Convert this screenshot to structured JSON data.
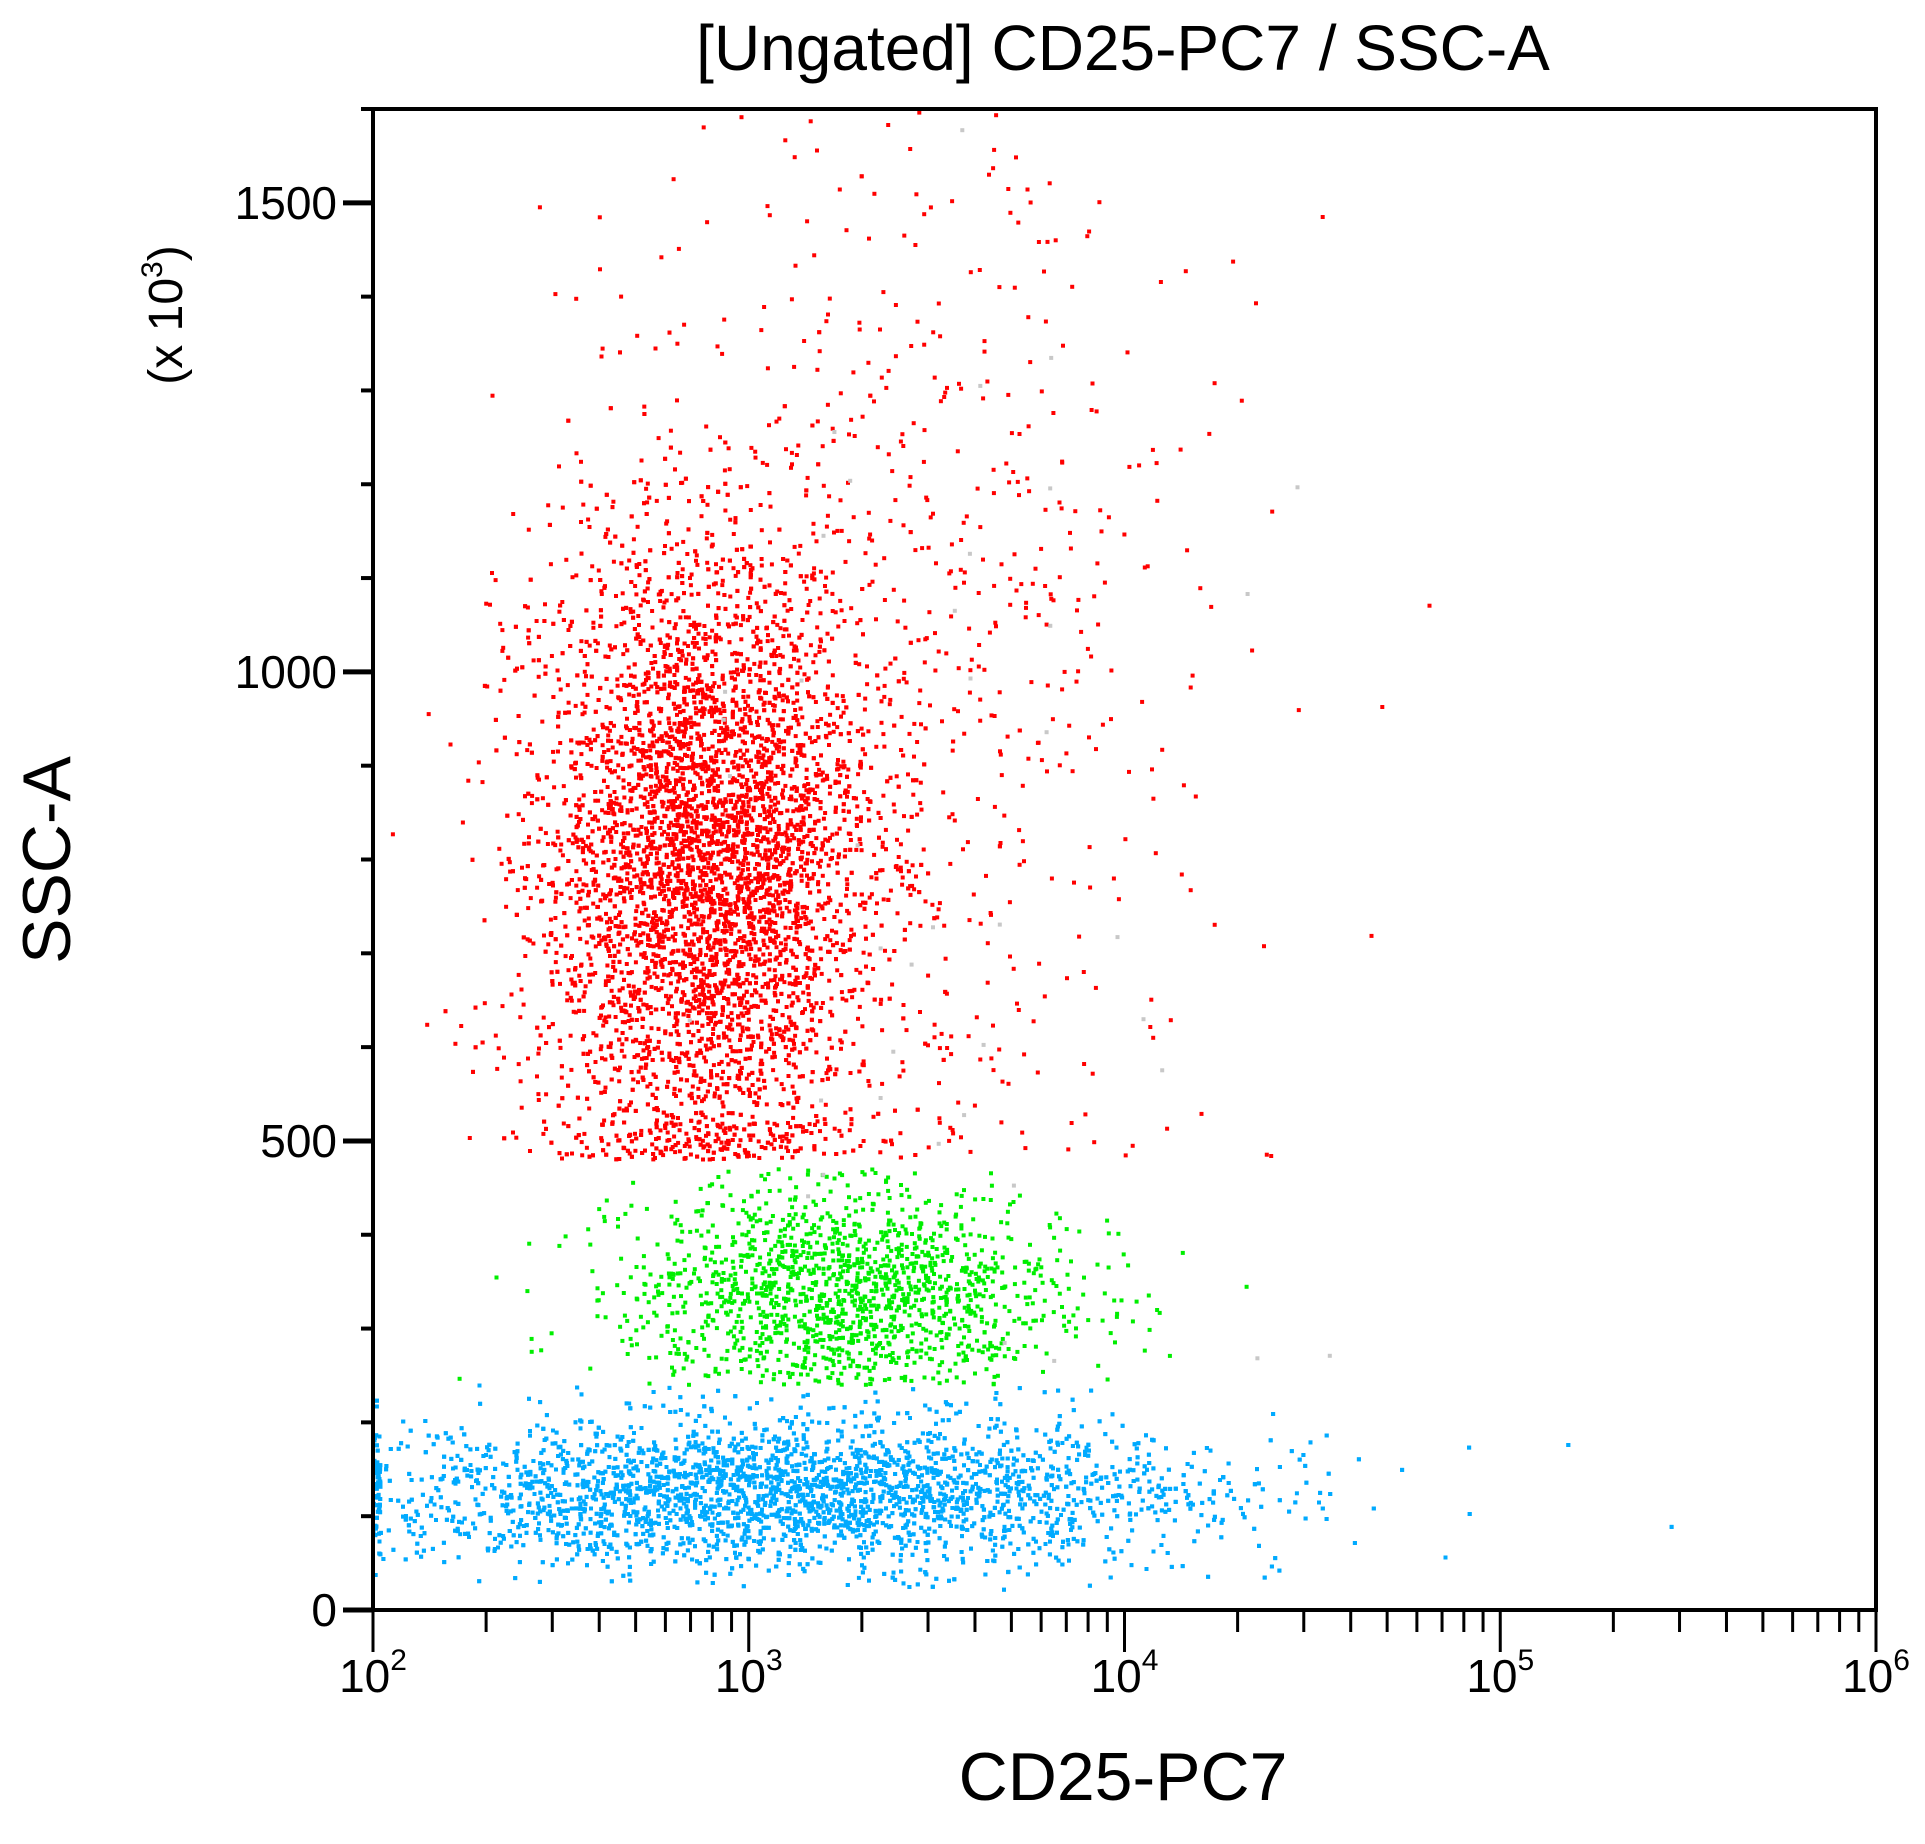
{
  "chart_data": {
    "type": "scatter",
    "title": "[Ungated] CD25-PC7 / SSC-A",
    "xlabel": "CD25-PC7",
    "ylabel": "SSC-A",
    "yunit": "(x 10",
    "yunit_exp": "3",
    "yunit_close": ")",
    "xscale": "log",
    "xlim": [
      100,
      1000000
    ],
    "ylim": [
      0,
      1600
    ],
    "x_ticks": [
      {
        "base": "10",
        "exp": "2",
        "value": 100
      },
      {
        "base": "10",
        "exp": "3",
        "value": 1000
      },
      {
        "base": "10",
        "exp": "4",
        "value": 10000
      },
      {
        "base": "10",
        "exp": "5",
        "value": 100000
      },
      {
        "base": "10",
        "exp": "6",
        "value": 1000000
      }
    ],
    "y_ticks": [
      {
        "label": "0",
        "value": 0
      },
      {
        "label": "500",
        "value": 500
      },
      {
        "label": "1000",
        "value": 1000
      },
      {
        "label": "1500",
        "value": 1500
      }
    ],
    "y_minor_step": 100,
    "grid": false,
    "populations": [
      {
        "name": "red",
        "color": "#ff0000",
        "count": 6500,
        "log10_x_mean": 2.88,
        "log10_x_sd": 0.22,
        "y_mean": 800,
        "y_sd": 170,
        "y_min": 480
      },
      {
        "name": "red-sparse",
        "color": "#ff0000",
        "count": 700,
        "log10_x_mean": 3.4,
        "log10_x_sd": 0.45,
        "y_mean": 1050,
        "y_sd": 320,
        "y_min": 480
      },
      {
        "name": "green",
        "color": "#00ee00",
        "count": 1500,
        "log10_x_mean": 3.25,
        "log10_x_sd": 0.3,
        "y_mean": 340,
        "y_sd": 55,
        "y_min": 240,
        "y_max": 470
      },
      {
        "name": "blue",
        "color": "#00aaff",
        "count": 5500,
        "log10_x_mean": 3.1,
        "log10_x_sd": 0.55,
        "y_mean": 125,
        "y_sd": 40,
        "y_min": 20,
        "y_max": 240
      },
      {
        "name": "gray",
        "color": "#c8c8c8",
        "count": 40,
        "log10_x_mean": 3.6,
        "log10_x_sd": 0.4,
        "y_mean": 800,
        "y_sd": 400,
        "y_min": 250
      }
    ]
  }
}
